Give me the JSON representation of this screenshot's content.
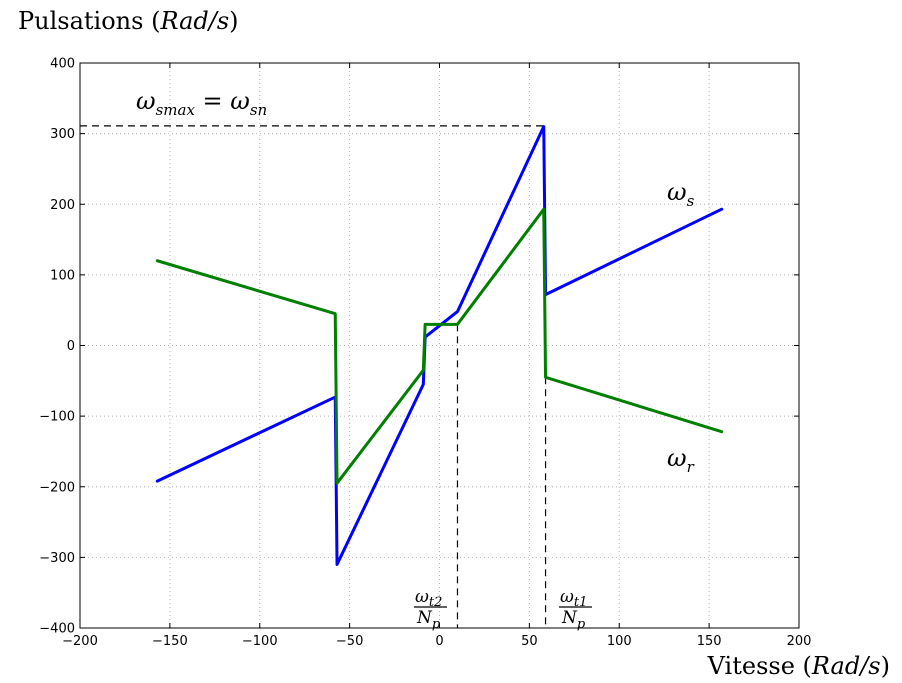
{
  "chart_data": {
    "type": "line",
    "title": "",
    "ylabel": {
      "main": "Pulsations ",
      "unit": "Rad/s"
    },
    "xlabel": {
      "main": "Vitesse ",
      "unit": "Rad/s"
    },
    "xlim": [
      -200,
      200
    ],
    "ylim": [
      -400,
      400
    ],
    "xticks": [
      -200,
      -150,
      -100,
      -50,
      0,
      50,
      100,
      150,
      200
    ],
    "yticks": [
      -400,
      -300,
      -200,
      -100,
      0,
      100,
      200,
      300,
      400
    ],
    "xtick_labels": [
      "−200",
      "−150",
      "−100",
      "−50",
      "0",
      "50",
      "100",
      "150",
      "200"
    ],
    "ytick_labels": [
      "−400",
      "−300",
      "−200",
      "−100",
      "0",
      "100",
      "200",
      "300",
      "400"
    ],
    "grid": true,
    "series": [
      {
        "color": "#0000ff",
        "points": [
          [
            -157,
            -192
          ],
          [
            -58,
            -73
          ],
          [
            -57,
            -310
          ],
          [
            -9,
            -55
          ],
          [
            -8,
            12
          ],
          [
            10,
            48
          ],
          [
            58,
            310
          ],
          [
            59,
            72
          ],
          [
            157,
            193
          ]
        ]
      },
      {
        "color": "#007f00",
        "points": [
          [
            -157,
            120
          ],
          [
            -58,
            45
          ],
          [
            -57,
            -195
          ],
          [
            -9,
            -35
          ],
          [
            -8,
            30
          ],
          [
            10,
            30
          ],
          [
            58,
            193
          ],
          [
            59,
            -45
          ],
          [
            157,
            -122
          ]
        ]
      }
    ],
    "reference_lines": [
      {
        "points": [
          [
            -200,
            311
          ],
          [
            58,
            311
          ]
        ]
      },
      {
        "points": [
          [
            10,
            30
          ],
          [
            10,
            -400
          ]
        ]
      },
      {
        "points": [
          [
            59,
            -45
          ],
          [
            59,
            -400
          ]
        ]
      }
    ],
    "annotations": {
      "wsmax": {
        "lhs": "ω",
        "lhs_sub": "smax",
        "eq": " = ",
        "rhs": "ω",
        "rhs_sub": "sn"
      },
      "ws": {
        "sym": "ω",
        "sub": "s"
      },
      "wr": {
        "sym": "ω",
        "sub": "r"
      },
      "wt2": {
        "num": "ω",
        "num_sub": "t2",
        "den": "N",
        "den_sub": "p"
      },
      "wt1": {
        "num": "ω",
        "num_sub": "t1",
        "den": "N",
        "den_sub": "p"
      }
    }
  }
}
